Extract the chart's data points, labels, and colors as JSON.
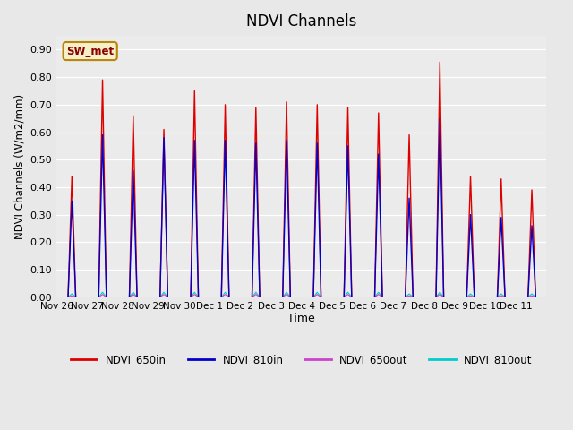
{
  "title": "NDVI Channels",
  "ylabel": "NDVI Channels (W/m2/mm)",
  "xlabel": "Time",
  "ylim": [
    0.0,
    0.95
  ],
  "yticks": [
    0.0,
    0.1,
    0.2,
    0.3,
    0.4,
    0.5,
    0.6,
    0.7,
    0.8,
    0.9
  ],
  "bg_color": "#e8e8e8",
  "plot_bg_color": "#ebebeb",
  "annotation_text": "SW_met",
  "annotation_bg": "#f5f0c8",
  "annotation_border": "#b8860b",
  "legend_entries": [
    "NDVI_650in",
    "NDVI_810in",
    "NDVI_650out",
    "NDVI_810out"
  ],
  "legend_colors": [
    "#dd0000",
    "#0000cc",
    "#cc44cc",
    "#00cccc"
  ],
  "xtick_labels": [
    "Nov 26",
    "Nov 27",
    "Nov 28",
    "Nov 29",
    "Nov 30",
    "Dec 1",
    "Dec 2",
    "Dec 3",
    "Dec 4",
    "Dec 5",
    "Dec 6",
    "Dec 7",
    "Dec 8",
    "Dec 9",
    "Dec 10",
    "Dec 11"
  ],
  "days": 16,
  "peaks_650in": [
    0.44,
    0.79,
    0.66,
    0.61,
    0.75,
    0.7,
    0.69,
    0.71,
    0.7,
    0.69,
    0.67,
    0.59,
    0.855,
    0.44,
    0.43,
    0.39
  ],
  "peaks_810in": [
    0.35,
    0.59,
    0.46,
    0.58,
    0.57,
    0.57,
    0.56,
    0.57,
    0.56,
    0.55,
    0.52,
    0.36,
    0.65,
    0.3,
    0.29,
    0.26
  ],
  "peaks_650out": [
    0.005,
    0.01,
    0.01,
    0.01,
    0.01,
    0.01,
    0.01,
    0.01,
    0.01,
    0.01,
    0.01,
    0.005,
    0.01,
    0.005,
    0.005,
    0.005
  ],
  "peaks_810out": [
    0.012,
    0.018,
    0.018,
    0.018,
    0.018,
    0.018,
    0.018,
    0.018,
    0.018,
    0.018,
    0.018,
    0.012,
    0.018,
    0.012,
    0.012,
    0.012
  ],
  "samples_per_day": 48,
  "colors": {
    "c650in": "#dd0000",
    "c810in": "#0000cc",
    "c650out": "#cc44cc",
    "c810out": "#00cccc"
  }
}
